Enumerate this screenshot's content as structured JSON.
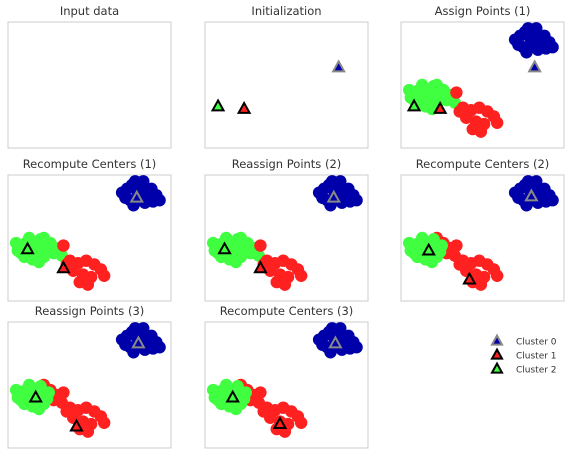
{
  "colors": {
    "cluster0": "#0000aa",
    "cluster1": "#ff2020",
    "cluster2": "#40ff40",
    "center_edge_dark": "#000000",
    "center_edge_light": "#888888",
    "frame": "#cccccc"
  },
  "chart_data": {
    "type": "scatter",
    "legend": {
      "position": "right",
      "entries": [
        "Cluster 0",
        "Cluster 1",
        "Cluster 2"
      ]
    },
    "axes": {
      "xlim": [
        0,
        10
      ],
      "ylim": [
        0,
        10
      ],
      "ticks": false,
      "grid": false
    },
    "points": {
      "blue": [
        [
          7.0,
          8.6
        ],
        [
          7.3,
          8.9
        ],
        [
          7.6,
          9.2
        ],
        [
          7.9,
          8.8
        ],
        [
          8.2,
          9.1
        ],
        [
          8.5,
          8.7
        ],
        [
          8.8,
          8.9
        ],
        [
          9.1,
          8.4
        ],
        [
          8.0,
          8.2
        ],
        [
          7.5,
          8.0
        ],
        [
          8.4,
          7.8
        ],
        [
          8.9,
          7.9
        ],
        [
          7.8,
          9.5
        ],
        [
          8.3,
          9.5
        ],
        [
          7.2,
          8.2
        ],
        [
          9.3,
          8.0
        ],
        [
          8.6,
          8.1
        ],
        [
          7.7,
          7.6
        ],
        [
          8.1,
          8.6
        ],
        [
          8.0,
          9.0
        ]
      ],
      "red": [
        [
          2.2,
          5.0
        ],
        [
          2.6,
          4.6
        ],
        [
          3.0,
          4.2
        ],
        [
          2.4,
          4.2
        ],
        [
          2.8,
          3.8
        ],
        [
          3.3,
          3.6
        ],
        [
          3.8,
          3.2
        ],
        [
          4.3,
          3.0
        ],
        [
          4.8,
          3.2
        ],
        [
          5.3,
          2.9
        ],
        [
          5.7,
          2.5
        ],
        [
          4.0,
          2.4
        ],
        [
          4.6,
          2.1
        ],
        [
          5.1,
          1.9
        ],
        [
          4.4,
          1.5
        ],
        [
          3.6,
          2.9
        ],
        [
          5.9,
          2.0
        ],
        [
          4.9,
          1.3
        ],
        [
          3.4,
          4.4
        ],
        [
          2.1,
          4.5
        ]
      ],
      "green": [
        [
          0.5,
          4.6
        ],
        [
          0.8,
          4.3
        ],
        [
          1.1,
          4.6
        ],
        [
          1.4,
          4.3
        ],
        [
          1.7,
          4.5
        ],
        [
          2.0,
          4.2
        ],
        [
          1.2,
          3.9
        ],
        [
          1.6,
          3.7
        ],
        [
          1.9,
          3.9
        ],
        [
          2.2,
          3.5
        ],
        [
          1.5,
          3.3
        ],
        [
          1.9,
          3.1
        ],
        [
          0.8,
          3.8
        ],
        [
          2.4,
          3.9
        ],
        [
          2.5,
          4.4
        ],
        [
          1.3,
          5.0
        ],
        [
          1.0,
          3.5
        ],
        [
          2.0,
          4.9
        ],
        [
          1.8,
          3.6
        ],
        [
          0.6,
          4.0
        ]
      ]
    },
    "panels": [
      {
        "title": "Input data",
        "labels": null,
        "centers": []
      },
      {
        "title": "Initialization",
        "labels": null,
        "centers": [
          {
            "cluster": 0,
            "x": 8.2,
            "y": 6.4
          },
          {
            "cluster": 1,
            "x": 2.4,
            "y": 3.1
          },
          {
            "cluster": 2,
            "x": 0.8,
            "y": 3.3
          }
        ]
      },
      {
        "title": "Assign Points (1)",
        "labels": {
          "blue": 0,
          "red": 1,
          "green": 2,
          "green_override_red_first": 6
        },
        "centers": [
          {
            "cluster": 0,
            "x": 8.2,
            "y": 6.4
          },
          {
            "cluster": 1,
            "x": 2.4,
            "y": 3.1
          },
          {
            "cluster": 2,
            "x": 0.8,
            "y": 3.3
          }
        ]
      },
      {
        "title": "Recompute Centers (1)",
        "labels": {
          "blue": 0,
          "red": 1,
          "green": 2,
          "green_override_red_first": 6
        },
        "centers": [
          {
            "cluster": 0,
            "x": 7.9,
            "y": 8.2
          },
          {
            "cluster": 1,
            "x": 3.4,
            "y": 2.6
          },
          {
            "cluster": 2,
            "x": 1.2,
            "y": 4.1
          }
        ]
      },
      {
        "title": "Reassign Points (2)",
        "labels": {
          "blue": 0,
          "red": 1,
          "green": 2,
          "green_override_red_first": 6
        },
        "centers": [
          {
            "cluster": 0,
            "x": 7.9,
            "y": 8.2
          },
          {
            "cluster": 1,
            "x": 3.4,
            "y": 2.6
          },
          {
            "cluster": 2,
            "x": 1.2,
            "y": 4.1
          }
        ]
      },
      {
        "title": "Recompute Centers (2)",
        "labels": {
          "blue": 0,
          "red": 1,
          "green": 2,
          "green_override_red_first": 0
        },
        "centers": [
          {
            "cluster": 0,
            "x": 8.0,
            "y": 8.3
          },
          {
            "cluster": 1,
            "x": 4.2,
            "y": 1.7
          },
          {
            "cluster": 2,
            "x": 1.7,
            "y": 4.0
          }
        ]
      },
      {
        "title": "Reassign Points (3)",
        "labels": {
          "blue": 0,
          "red": 1,
          "green": 2,
          "green_override_red_first": 0
        },
        "centers": [
          {
            "cluster": 0,
            "x": 8.0,
            "y": 8.3
          },
          {
            "cluster": 1,
            "x": 4.2,
            "y": 1.7
          },
          {
            "cluster": 2,
            "x": 1.7,
            "y": 4.0
          }
        ]
      },
      {
        "title": "Recompute Centers (3)",
        "labels": {
          "blue": 0,
          "red": 1,
          "green": 2,
          "green_override_red_first": 0
        },
        "centers": [
          {
            "cluster": 0,
            "x": 8.0,
            "y": 8.3
          },
          {
            "cluster": 1,
            "x": 4.6,
            "y": 1.9
          },
          {
            "cluster": 2,
            "x": 1.7,
            "y": 4.0
          }
        ]
      }
    ]
  }
}
